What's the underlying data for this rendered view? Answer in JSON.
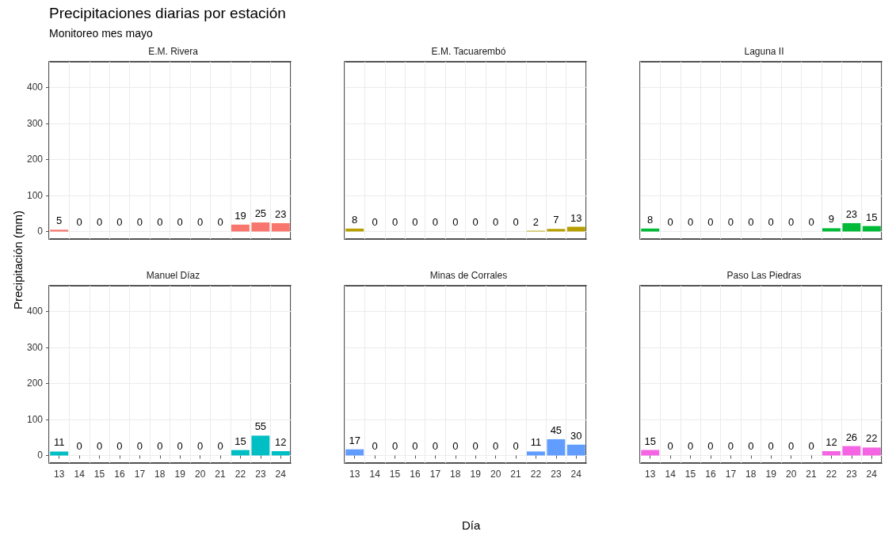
{
  "chart_data": [
    {
      "type": "bar",
      "title": "E.M. Rivera",
      "annotations": [
        "Precipitaciones diarias por estación",
        "Monitoreo mes mayo"
      ],
      "ylabel": "Precipitación (mm)",
      "categories": [
        "13",
        "14",
        "15",
        "16",
        "17",
        "18",
        "19",
        "20",
        "21",
        "22",
        "23",
        "24"
      ],
      "values": [
        5,
        0,
        0,
        0,
        0,
        0,
        0,
        0,
        0,
        19,
        25,
        23
      ],
      "color": "#f8766d",
      "ylim": [
        -21,
        471
      ],
      "yticks": [
        0,
        100,
        200,
        300,
        400
      ],
      "grid": true,
      "data_labels": true,
      "tick_labels": "y"
    },
    {
      "type": "bar",
      "title": "E.M. Tacuarembó",
      "categories": [
        "13",
        "14",
        "15",
        "16",
        "17",
        "18",
        "19",
        "20",
        "21",
        "22",
        "23",
        "24"
      ],
      "values": [
        8,
        0,
        0,
        0,
        0,
        0,
        0,
        0,
        0,
        2,
        7,
        13
      ],
      "color": "#b79f00",
      "ylim": [
        -21,
        471
      ],
      "yticks": [
        0,
        100,
        200,
        300,
        400
      ],
      "grid": true,
      "data_labels": true,
      "tick_labels": false
    },
    {
      "type": "bar",
      "title": "Laguna II",
      "categories": [
        "13",
        "14",
        "15",
        "16",
        "17",
        "18",
        "19",
        "20",
        "21",
        "22",
        "23",
        "24"
      ],
      "values": [
        8,
        0,
        0,
        0,
        0,
        0,
        0,
        0,
        0,
        9,
        23,
        15
      ],
      "color": "#00ba38",
      "ylim": [
        -21,
        471
      ],
      "yticks": [
        0,
        100,
        200,
        300,
        400
      ],
      "grid": true,
      "data_labels": true,
      "tick_labels": false
    },
    {
      "type": "bar",
      "title": "Manuel Díaz",
      "categories": [
        "13",
        "14",
        "15",
        "16",
        "17",
        "18",
        "19",
        "20",
        "21",
        "22",
        "23",
        "24"
      ],
      "values": [
        11,
        0,
        0,
        0,
        0,
        0,
        0,
        0,
        0,
        15,
        55,
        12
      ],
      "color": "#00bfc4",
      "ylim": [
        -21,
        471
      ],
      "yticks": [
        0,
        100,
        200,
        300,
        400
      ],
      "grid": true,
      "data_labels": true
    },
    {
      "type": "bar",
      "title": "Minas de Corrales",
      "xlabel": "Día",
      "categories": [
        "13",
        "14",
        "15",
        "16",
        "17",
        "18",
        "19",
        "20",
        "21",
        "22",
        "23",
        "24"
      ],
      "values": [
        17,
        0,
        0,
        0,
        0,
        0,
        0,
        0,
        0,
        11,
        45,
        30
      ],
      "color": "#619cff",
      "ylim": [
        -21,
        471
      ],
      "yticks": [
        0,
        100,
        200,
        300,
        400
      ],
      "grid": true,
      "data_labels": true,
      "tick_labels": "x"
    },
    {
      "type": "bar",
      "title": "Paso Las Piedras",
      "categories": [
        "13",
        "14",
        "15",
        "16",
        "17",
        "18",
        "19",
        "20",
        "21",
        "22",
        "23",
        "24"
      ],
      "values": [
        15,
        0,
        0,
        0,
        0,
        0,
        0,
        0,
        0,
        12,
        26,
        22
      ],
      "color": "#f564e3",
      "ylim": [
        -21,
        471
      ],
      "yticks": [
        0,
        100,
        200,
        300,
        400
      ],
      "grid": true,
      "data_labels": true,
      "tick_labels": "x"
    }
  ]
}
